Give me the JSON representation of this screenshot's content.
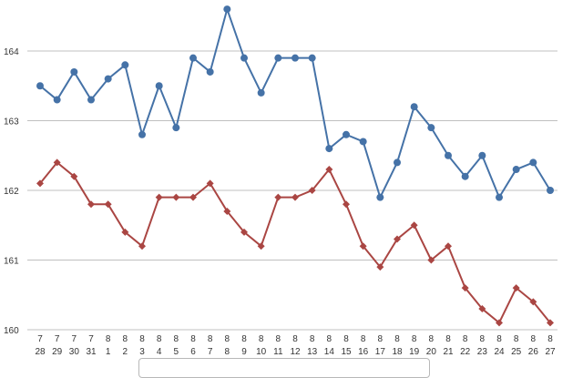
{
  "chart_data": {
    "type": "line",
    "title": "",
    "xlabel": "",
    "ylabel": "",
    "ylim": [
      160,
      164.7
    ],
    "yticks": [
      "164",
      "163",
      "162",
      "161",
      "160"
    ],
    "categories": [
      [
        "7",
        "28"
      ],
      [
        "7",
        "29"
      ],
      [
        "7",
        "30"
      ],
      [
        "7",
        "31"
      ],
      [
        "8",
        "1"
      ],
      [
        "8",
        "2"
      ],
      [
        "8",
        "3"
      ],
      [
        "8",
        "4"
      ],
      [
        "8",
        "5"
      ],
      [
        "8",
        "6"
      ],
      [
        "8",
        "7"
      ],
      [
        "8",
        "8"
      ],
      [
        "8",
        "9"
      ],
      [
        "8",
        "10"
      ],
      [
        "8",
        "11"
      ],
      [
        "8",
        "12"
      ],
      [
        "8",
        "13"
      ],
      [
        "8",
        "14"
      ],
      [
        "8",
        "15"
      ],
      [
        "8",
        "16"
      ],
      [
        "8",
        "17"
      ],
      [
        "8",
        "18"
      ],
      [
        "8",
        "19"
      ],
      [
        "8",
        "20"
      ],
      [
        "8",
        "21"
      ],
      [
        "8",
        "22"
      ],
      [
        "8",
        "23"
      ],
      [
        "8",
        "24"
      ],
      [
        "8",
        "25"
      ],
      [
        "8",
        "26"
      ],
      [
        "8",
        "27"
      ]
    ],
    "grid": true,
    "series": [
      {
        "color": "#4572a7",
        "marker": "circle",
        "values": [
          163.5,
          163.3,
          163.7,
          163.3,
          163.6,
          163.8,
          162.8,
          163.5,
          162.9,
          163.9,
          163.7,
          164.6,
          163.9,
          163.4,
          163.9,
          163.9,
          163.9,
          162.6,
          162.8,
          162.7,
          161.9,
          162.4,
          163.2,
          162.9,
          162.5,
          162.2,
          162.5,
          161.9,
          162.3,
          162.4,
          162.0
        ]
      },
      {
        "color": "#aa4643",
        "marker": "diamond",
        "values": [
          162.1,
          162.4,
          162.2,
          161.8,
          161.8,
          161.4,
          161.2,
          161.9,
          161.9,
          161.9,
          162.1,
          161.7,
          161.4,
          161.2,
          161.9,
          161.9,
          162.0,
          162.3,
          161.8,
          161.2,
          160.9,
          161.3,
          161.5,
          161.0,
          161.2,
          160.6,
          160.3,
          160.1,
          160.6,
          160.4,
          160.1
        ]
      }
    ]
  }
}
